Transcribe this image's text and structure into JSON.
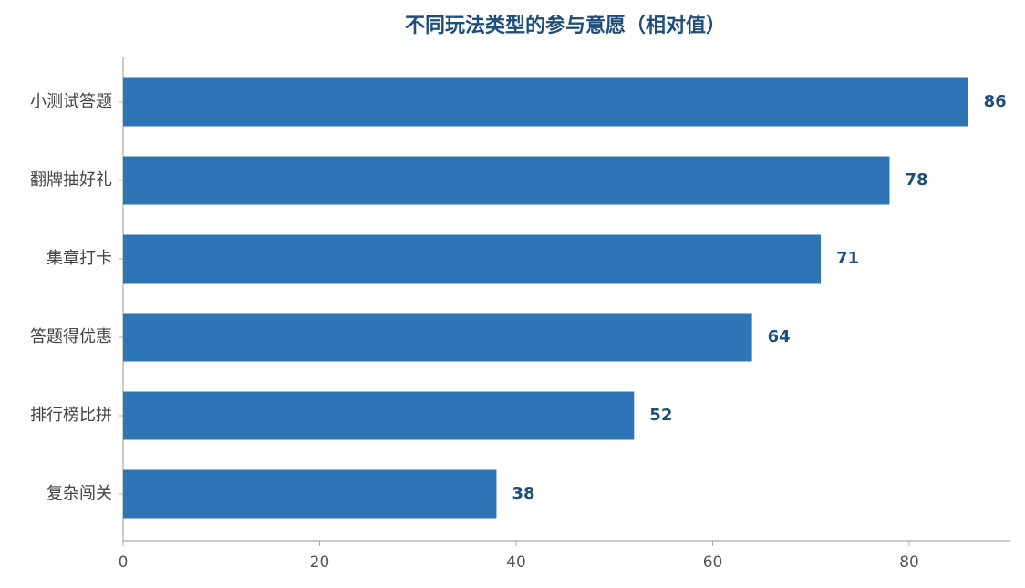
{
  "chart_data": {
    "type": "bar",
    "orientation": "horizontal",
    "title": "不同玩法类型的参与意愿（相对值）",
    "categories": [
      "小测试答题",
      "翻牌抽好礼",
      "集章打卡",
      "答题得优惠",
      "排行榜比拼",
      "复杂闯关"
    ],
    "values": [
      86,
      78,
      71,
      64,
      52,
      38
    ],
    "color": "#2e75b6",
    "xlim": [
      0,
      90.3
    ],
    "xticks": [
      0,
      20,
      40,
      60,
      80
    ],
    "grid": false
  }
}
